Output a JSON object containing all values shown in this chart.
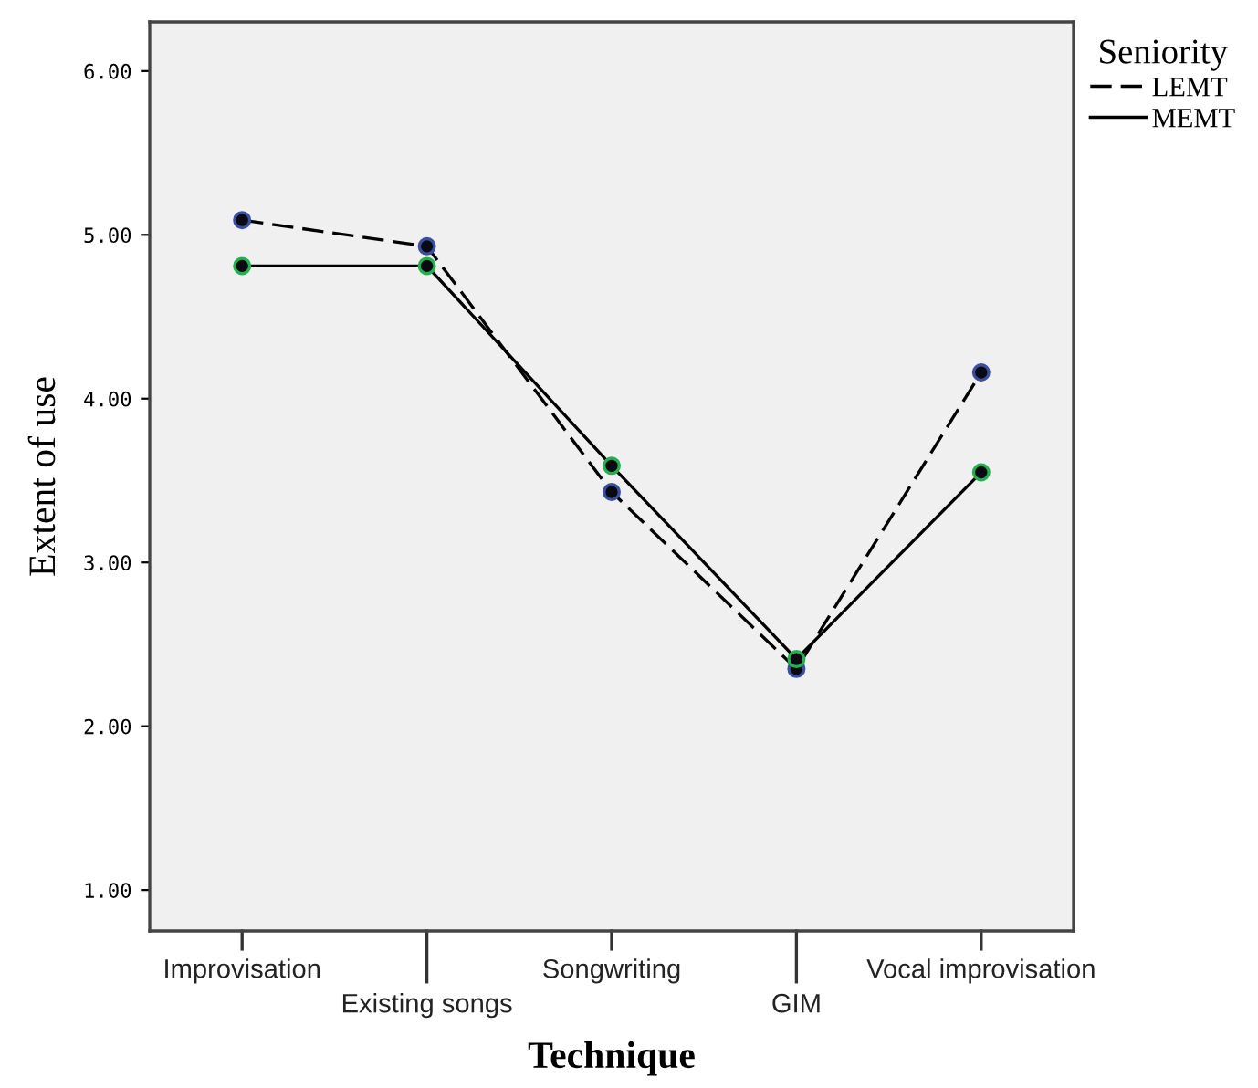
{
  "chart_data": {
    "type": "line",
    "xlabel": "Technique",
    "ylabel": "Extent of use",
    "legend_title": "Seniority",
    "categories": [
      "Improvisation",
      "Existing songs",
      "Songwriting",
      "GIM",
      "Vocal improvisation"
    ],
    "series": [
      {
        "name": "LEMT",
        "color": "#3b4fa0",
        "line_style": "dashed",
        "values": [
          5.09,
          4.93,
          3.43,
          2.35,
          4.16
        ]
      },
      {
        "name": "MEMT",
        "color": "#22b14c",
        "line_style": "solid",
        "values": [
          4.81,
          4.81,
          3.59,
          2.41,
          3.55
        ]
      }
    ],
    "marker": "circle",
    "ylim": [
      0.75,
      6.3
    ],
    "yticks": [
      {
        "value": 1,
        "label": "1.00"
      },
      {
        "value": 2,
        "label": "2.00"
      },
      {
        "value": 3,
        "label": "3.00"
      },
      {
        "value": 4,
        "label": "4.00"
      },
      {
        "value": 5,
        "label": "5.00"
      },
      {
        "value": 6,
        "label": "6.00"
      }
    ],
    "grid": false,
    "legend": "top right"
  }
}
